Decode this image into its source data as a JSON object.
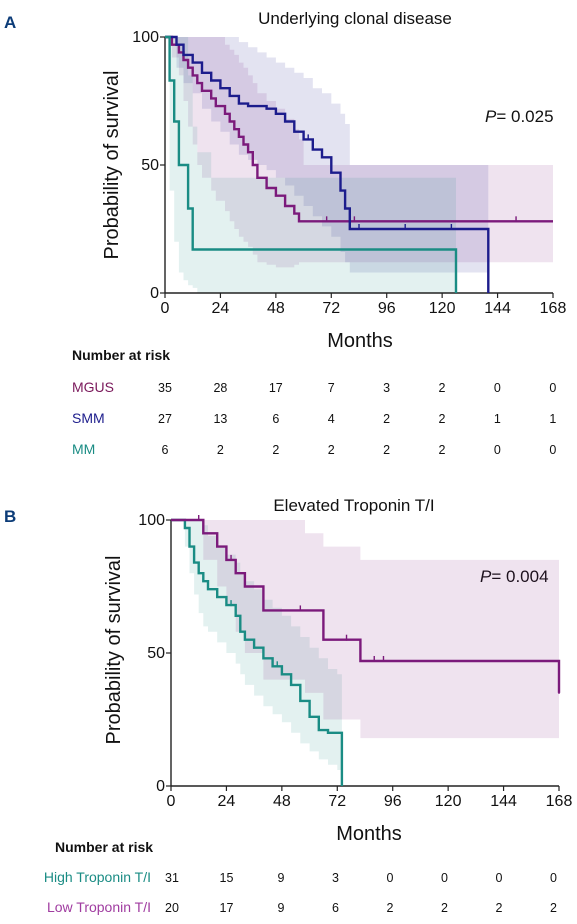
{
  "chart_data": [
    {
      "panel_label": "A",
      "type": "line",
      "subtype": "kaplan-meier",
      "title": "Underlying clonal disease",
      "xlabel": "Months",
      "ylabel": "Probability of survival",
      "xlim": [
        0,
        168
      ],
      "ylim": [
        0,
        100
      ],
      "x_ticks": [
        "0",
        "24",
        "48",
        "72",
        "96",
        "120",
        "144",
        "168"
      ],
      "y_ticks": [
        "0",
        "50",
        "100"
      ],
      "p_value_prefix": "P",
      "p_value_rest": "= 0.025",
      "grid": false,
      "series": [
        {
          "name": "MGUS",
          "color": "#7b1a7b",
          "x": [
            0,
            3,
            6,
            8,
            10,
            12,
            14,
            16,
            20,
            22,
            26,
            28,
            30,
            32,
            34,
            36,
            38,
            40,
            44,
            48,
            52,
            56,
            58,
            60,
            170
          ],
          "y": [
            100,
            97,
            94,
            91,
            88,
            85,
            82,
            79,
            76,
            73,
            70,
            67,
            64,
            61,
            58,
            55,
            50,
            45,
            41,
            38,
            34,
            31,
            28,
            28,
            28
          ],
          "ci_lower": [
            100,
            92,
            85,
            75,
            65,
            58,
            50,
            45,
            40,
            36,
            32,
            28,
            25,
            22,
            20,
            18,
            15,
            12,
            11,
            10,
            10,
            11,
            12,
            12,
            12
          ],
          "ci_upper": [
            100,
            100,
            100,
            100,
            100,
            100,
            100,
            100,
            100,
            100,
            97,
            95,
            93,
            90,
            88,
            85,
            82,
            78,
            75,
            72,
            68,
            64,
            60,
            50,
            50
          ],
          "censor_x": [
            6,
            36,
            70,
            82,
            152
          ]
        },
        {
          "name": "SMM",
          "color": "#1c1c8c",
          "x": [
            0,
            5,
            8,
            12,
            16,
            20,
            24,
            28,
            32,
            36,
            40,
            44,
            48,
            52,
            56,
            60,
            64,
            68,
            72,
            76,
            78,
            80,
            140,
            140
          ],
          "y": [
            100,
            97,
            93,
            90,
            86,
            83,
            80,
            77,
            74,
            73,
            73,
            72,
            70,
            67,
            63,
            60,
            56,
            53,
            47,
            40,
            33,
            25,
            18,
            0
          ],
          "ci_lower": [
            100,
            88,
            82,
            78,
            72,
            67,
            63,
            58,
            54,
            52,
            50,
            48,
            45,
            42,
            38,
            34,
            30,
            26,
            22,
            16,
            12,
            8,
            5,
            5
          ],
          "ci_upper": [
            100,
            100,
            100,
            100,
            100,
            100,
            100,
            100,
            98,
            96,
            94,
            92,
            90,
            88,
            86,
            84,
            80,
            78,
            74,
            70,
            66,
            50,
            37,
            37
          ],
          "censor_x": [
            62,
            84,
            104,
            124
          ]
        },
        {
          "name": "MM",
          "color": "#1a8c84",
          "x": [
            0,
            2,
            4,
            6,
            8,
            10,
            12,
            14,
            20,
            126,
            126
          ],
          "y": [
            100,
            83,
            67,
            50,
            50,
            33,
            17,
            17,
            17,
            17,
            0
          ],
          "ci_lower": [
            100,
            40,
            20,
            8,
            5,
            3,
            2,
            0,
            0,
            0,
            0
          ],
          "ci_upper": [
            100,
            100,
            100,
            100,
            100,
            85,
            65,
            55,
            45,
            40,
            40
          ],
          "censor_x": []
        }
      ],
      "risk_table": {
        "header": "Number at risk",
        "rows": [
          {
            "label": "MGUS",
            "color": "#7b1a5c",
            "values": [
              "35",
              "28",
              "17",
              "7",
              "3",
              "2",
              "0",
              "0"
            ]
          },
          {
            "label": "SMM",
            "color": "#1c1c8c",
            "values": [
              "27",
              "13",
              "6",
              "4",
              "2",
              "2",
              "1",
              "1"
            ]
          },
          {
            "label": "MM",
            "color": "#1a8c84",
            "values": [
              "6",
              "2",
              "2",
              "2",
              "2",
              "2",
              "0",
              "0"
            ]
          }
        ]
      }
    },
    {
      "panel_label": "B",
      "type": "line",
      "subtype": "kaplan-meier",
      "title": "Elevated Troponin T/I",
      "xlabel": "Months",
      "ylabel": "Probability of survival",
      "xlim": [
        0,
        168
      ],
      "ylim": [
        0,
        100
      ],
      "x_ticks": [
        "0",
        "24",
        "48",
        "72",
        "96",
        "120",
        "144",
        "168"
      ],
      "y_ticks": [
        "0",
        "50",
        "100"
      ],
      "p_value_prefix": "P",
      "p_value_rest": "= 0.004",
      "grid": false,
      "series": [
        {
          "name": "High Troponin T/I",
          "color": "#1a8c84",
          "x": [
            0,
            6,
            8,
            10,
            12,
            14,
            16,
            20,
            24,
            28,
            30,
            32,
            36,
            40,
            44,
            48,
            52,
            56,
            60,
            64,
            68,
            72,
            74,
            74
          ],
          "y": [
            100,
            97,
            90,
            84,
            80,
            77,
            74,
            71,
            68,
            64,
            58,
            55,
            52,
            48,
            45,
            42,
            38,
            32,
            26,
            21,
            20,
            20,
            15,
            0
          ],
          "ci_lower": [
            100,
            90,
            80,
            72,
            65,
            60,
            58,
            54,
            50,
            46,
            42,
            38,
            34,
            30,
            27,
            24,
            20,
            16,
            13,
            10,
            8,
            6,
            5,
            5
          ],
          "ci_upper": [
            100,
            100,
            100,
            100,
            100,
            98,
            94,
            90,
            87,
            84,
            80,
            77,
            74,
            70,
            67,
            64,
            60,
            56,
            52,
            48,
            44,
            42,
            40,
            40
          ],
          "censor_x": [
            26,
            36,
            46
          ]
        },
        {
          "name": "Low Troponin T/I",
          "color": "#7b1a7b",
          "x": [
            0,
            10,
            14,
            20,
            24,
            28,
            32,
            40,
            58,
            66,
            82,
            170
          ],
          "y": [
            100,
            100,
            95,
            90,
            85,
            80,
            75,
            66,
            66,
            55,
            47,
            35
          ],
          "ci_lower": [
            100,
            100,
            85,
            75,
            68,
            58,
            50,
            40,
            35,
            25,
            18,
            10
          ],
          "ci_upper": [
            100,
            100,
            100,
            100,
            100,
            100,
            100,
            100,
            95,
            90,
            85,
            62
          ],
          "censor_x": [
            12,
            26,
            56,
            76,
            88,
            92,
            170
          ]
        }
      ],
      "risk_table": {
        "header": "Number at risk",
        "rows": [
          {
            "label": "High Troponin T/I",
            "color": "#1a8c84",
            "values": [
              "31",
              "15",
              "9",
              "3",
              "0",
              "0",
              "0",
              "0"
            ]
          },
          {
            "label": "Low Troponin T/I",
            "color": "#a03ca0",
            "values": [
              "20",
              "17",
              "9",
              "6",
              "2",
              "2",
              "2",
              "2"
            ]
          }
        ]
      }
    }
  ]
}
